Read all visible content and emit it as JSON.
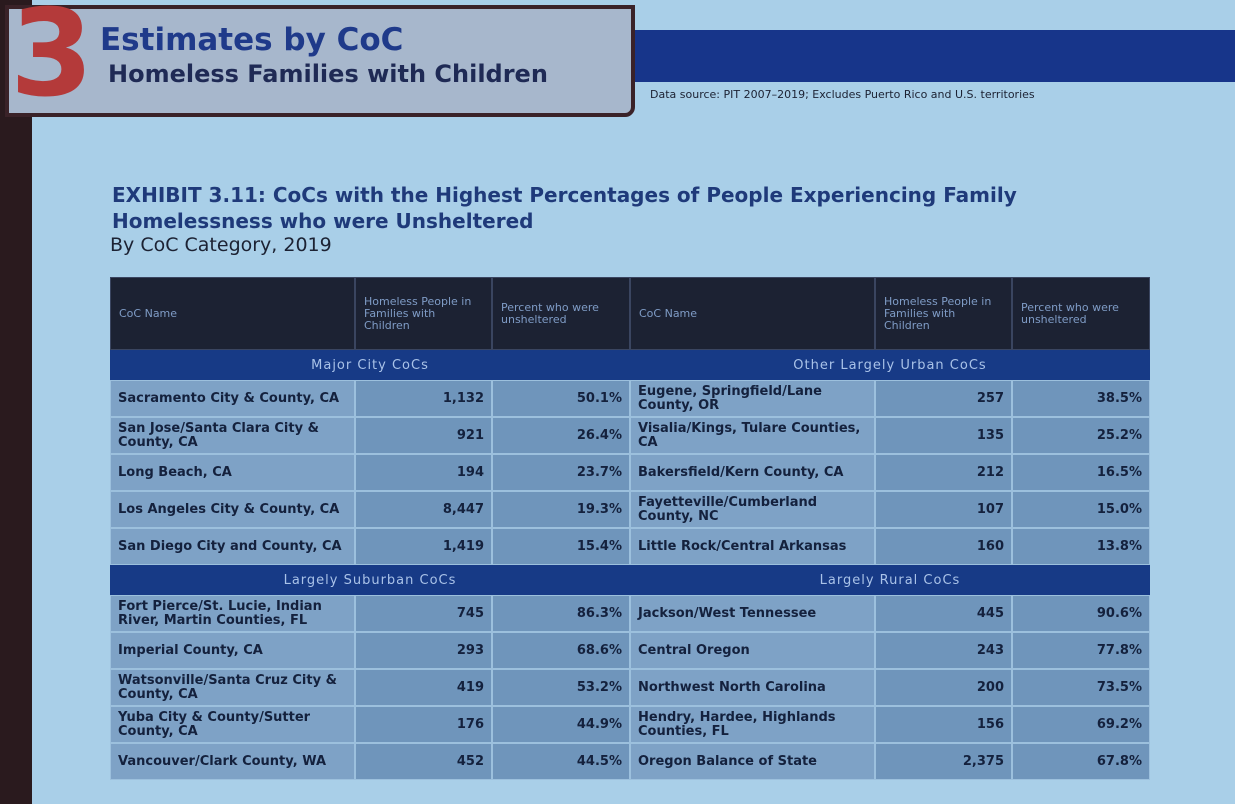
{
  "header": {
    "number": "3",
    "title": "Estimates by CoC",
    "subtitle": "Homeless Families with Children",
    "data_source": "Data source: PIT 2007–2019; Excludes Puerto Rico and U.S. territories"
  },
  "exhibit": {
    "title": "EXHIBIT 3.11: CoCs with the Highest Percentages of People Experiencing Family Homelessness who were Unsheltered",
    "subtitle": "By CoC Category, 2019"
  },
  "tables": [
    {
      "columns": [
        "CoC Name",
        "Homeless People in Families with Children",
        "Percent who were unsheltered"
      ],
      "sections": [
        {
          "name": "Major City CoCs",
          "rows": [
            [
              "Sacramento City & County, CA",
              "1,132",
              "50.1%"
            ],
            [
              "San Jose/Santa Clara City & County, CA",
              "921",
              "26.4%"
            ],
            [
              "Long Beach, CA",
              "194",
              "23.7%"
            ],
            [
              "Los Angeles City & County, CA",
              "8,447",
              "19.3%"
            ],
            [
              "San Diego City and County, CA",
              "1,419",
              "15.4%"
            ]
          ]
        },
        {
          "name": "Largely Suburban CoCs",
          "rows": [
            [
              "Fort Pierce/St. Lucie, Indian River, Martin Counties, FL",
              "745",
              "86.3%"
            ],
            [
              "Imperial County, CA",
              "293",
              "68.6%"
            ],
            [
              "Watsonville/Santa Cruz City & County, CA",
              "419",
              "53.2%"
            ],
            [
              "Yuba City & County/Sutter County, CA",
              "176",
              "44.9%"
            ],
            [
              "Vancouver/Clark County, WA",
              "452",
              "44.5%"
            ]
          ]
        }
      ]
    },
    {
      "columns": [
        "CoC Name",
        "Homeless People in Families with Children",
        "Percent who were unsheltered"
      ],
      "sections": [
        {
          "name": "Other Largely Urban CoCs",
          "rows": [
            [
              "Eugene, Springfield/Lane County, OR",
              "257",
              "38.5%"
            ],
            [
              "Visalia/Kings, Tulare Counties, CA",
              "135",
              "25.2%"
            ],
            [
              "Bakersfield/Kern County, CA",
              "212",
              "16.5%"
            ],
            [
              "Fayetteville/Cumberland County, NC",
              "107",
              "15.0%"
            ],
            [
              "Little Rock/Central Arkansas",
              "160",
              "13.8%"
            ]
          ]
        },
        {
          "name": "Largely Rural CoCs",
          "rows": [
            [
              "Jackson/West Tennessee",
              "445",
              "90.6%"
            ],
            [
              "Central Oregon",
              "243",
              "77.8%"
            ],
            [
              "Northwest North Carolina",
              "200",
              "73.5%"
            ],
            [
              "Hendry, Hardee, Highlands Counties, FL",
              "156",
              "69.2%"
            ],
            [
              "Oregon Balance of State",
              "2,375",
              "67.8%"
            ]
          ]
        }
      ]
    }
  ]
}
